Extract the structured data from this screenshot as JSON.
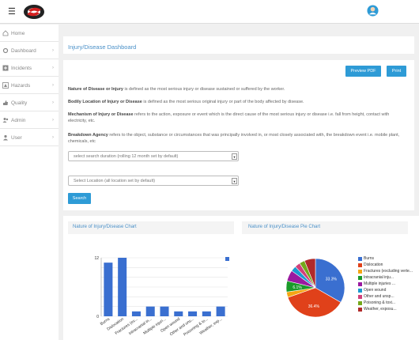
{
  "app": {
    "title": ""
  },
  "sidebar": {
    "items": [
      {
        "label": "Home",
        "icon": "home-icon"
      },
      {
        "label": "Dashboard",
        "icon": "gear-icon"
      },
      {
        "label": "Incidents",
        "icon": "plus-square-icon"
      },
      {
        "label": "Hazards",
        "icon": "warning-icon"
      },
      {
        "label": "Quality",
        "icon": "thumbs-up-icon"
      },
      {
        "label": "Admin",
        "icon": "users-icon"
      },
      {
        "label": "User",
        "icon": "user-icon"
      }
    ]
  },
  "main": {
    "title": "Injury/Disease Dashboard",
    "preview_pdf_label": "Preview PDF",
    "print_label": "Print",
    "definitions": [
      {
        "term": "Nature of Disease or Injury",
        "text": " is defined as the most serious injury or disease sustained or suffered by the worker."
      },
      {
        "term": "Bodily Location of Injury or Disease",
        "text": " is defined as the most serious original injury or part of the body affected by disease."
      },
      {
        "term": "Mechanism of Injury or Disease",
        "text": " refers to the action, exposure or event which is the direct cause of the most serious injury or disease i.e. fall from height, contact with electricity, etc."
      },
      {
        "term": "Breakdown Agency",
        "text": " refers to the object, substance or circumstances that was principally involved in, or most closely associated with, the breakdown event i.e. mobile plant, chemicals, etc"
      }
    ],
    "duration_select": "select search duration (rolling 12 month set by default)",
    "location_select": "Select Location (all location set by default)",
    "search_label": "Search"
  },
  "charts": {
    "bar_title": "Nature of Injury/Disease Chart",
    "pie_title": "Nature of Injury/Disease Pie Chart"
  },
  "colors": {
    "accent": "#2e9bd6",
    "title": "#4a90c8"
  },
  "chart_data": [
    {
      "type": "bar",
      "categories": [
        "Burns",
        "Dislocation",
        "Fractures (ex...",
        "Intracranial in...",
        "Multiple injuri...",
        "Open wound",
        "Other and uns...",
        "Poisoning & to...",
        "Weather, exp..."
      ],
      "values": [
        11,
        12,
        1,
        2,
        2,
        1,
        1,
        1,
        2
      ],
      "ylim": [
        0,
        12
      ],
      "yticks": [
        0,
        2,
        4,
        6,
        8,
        10,
        12
      ],
      "color": "#3a6fd0",
      "title": "",
      "xlabel": "",
      "ylabel": ""
    },
    {
      "type": "pie",
      "labels": [
        "Burns",
        "Dislocation",
        "Fractures (excluding verte...",
        "Intracranial inju...",
        "Multiple injuries ...",
        "Open wound",
        "Other and unsp...",
        "Poisoning & toxi...",
        "Weather, exposu..."
      ],
      "values": [
        33.3,
        36.4,
        3.0,
        6.1,
        6.1,
        3.0,
        3.0,
        3.0,
        6.1
      ],
      "data_labels": [
        "33.3%",
        "36.4%",
        "",
        "6.1%",
        "",
        "",
        "",
        "",
        ""
      ],
      "colors": [
        "#3a6fd0",
        "#e0411a",
        "#f5a614",
        "#1a9a2a",
        "#9a1aa0",
        "#1a9ad0",
        "#d0407a",
        "#74a81a",
        "#b02a2a"
      ],
      "legend": "right"
    }
  ]
}
